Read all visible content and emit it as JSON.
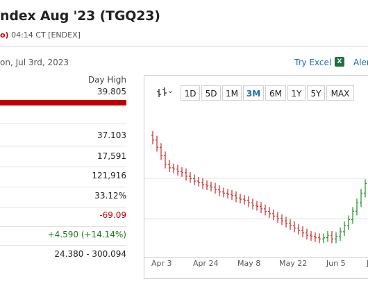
{
  "header": {
    "title": "ndex Aug '23 (TGQ23)",
    "change_fragment": "o)",
    "timestamp": "04:14 CT [ENDEX]",
    "date_fragment": "on, Jul 3rd, 2023",
    "try_excel": "Try Excel",
    "alerts_fragment": "Aler"
  },
  "stats": {
    "day_high_label": "Day High",
    "day_high_value": "39.805",
    "rows": [
      "37.103",
      "17,591",
      "121,916",
      "33.12%",
      "-69.09",
      "+4.590 (+14.14%)",
      "24.380 - 300.094"
    ]
  },
  "chart": {
    "ranges": [
      "1D",
      "5D",
      "1M",
      "3M",
      "6M",
      "1Y",
      "5Y",
      "MAX"
    ],
    "active_range": "3M",
    "x_labels": [
      "Apr 3",
      "Apr 24",
      "May 8",
      "May 22",
      "Jun 5",
      "J"
    ]
  },
  "chart_data": {
    "type": "ohlc",
    "x_tick_labels": [
      "Apr 3",
      "Apr 24",
      "May 8",
      "May 22",
      "Jun 5"
    ],
    "close": [
      37.2,
      36.6,
      35.9,
      35.2,
      34.9,
      34.8,
      34.6,
      34.5,
      34.2,
      34.0,
      33.8,
      33.7,
      33.5,
      33.4,
      33.3,
      33.1,
      32.9,
      32.8,
      32.7,
      32.6,
      32.4,
      32.3,
      32.2,
      32.0,
      31.8,
      31.7,
      31.5,
      31.3,
      31.1,
      30.9,
      30.7,
      30.5,
      30.3,
      30.1,
      29.9,
      29.7,
      29.5,
      29.3,
      29.2,
      29.1,
      29.0,
      29.1,
      29.3,
      29.0,
      29.2,
      29.6,
      30.1,
      30.6,
      31.3,
      32.0,
      32.8,
      33.6
    ],
    "colors": {
      "up": "#1a8f1a",
      "down": "#c62828"
    }
  }
}
